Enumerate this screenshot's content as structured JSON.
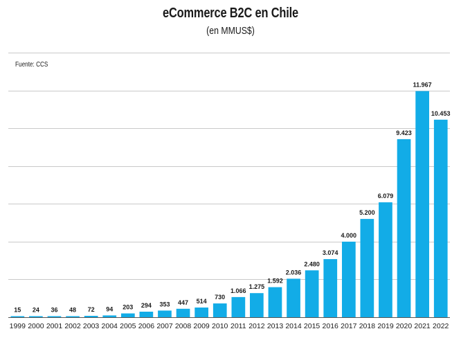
{
  "title": "eCommerce B2C en Chile",
  "subtitle": "(en MMUS$)",
  "source": "Fuente: CCS",
  "colors": {
    "bar": "#12ace7",
    "grid": "#c9c9c9",
    "text": "#1a1a1a"
  },
  "chart_data": {
    "type": "bar",
    "title": "eCommerce B2C en Chile",
    "subtitle": "(en MMUS$)",
    "xlabel": "",
    "ylabel": "",
    "ylim": [
      0,
      14000
    ],
    "grid": true,
    "categories": [
      "1999",
      "2000",
      "2001",
      "2002",
      "2003",
      "2004",
      "2005",
      "2006",
      "2007",
      "2008",
      "2009",
      "2010",
      "2011",
      "2012",
      "2013",
      "2014",
      "2015",
      "2016",
      "2017",
      "2018",
      "2019",
      "2020",
      "2021",
      "2022"
    ],
    "values": [
      15,
      24,
      36,
      48,
      72,
      94,
      203,
      294,
      353,
      447,
      514,
      730,
      1066,
      1275,
      1592,
      2036,
      2480,
      3074,
      4000,
      5200,
      6079,
      9423,
      11967,
      10453
    ],
    "value_labels": [
      "15",
      "24",
      "36",
      "48",
      "72",
      "94",
      "203",
      "294",
      "353",
      "447",
      "514",
      "730",
      "1.066",
      "1.275",
      "1.592",
      "2.036",
      "2.480",
      "3.074",
      "4.000",
      "5.200",
      "6.079",
      "9.423",
      "11.967",
      "10.453"
    ]
  }
}
